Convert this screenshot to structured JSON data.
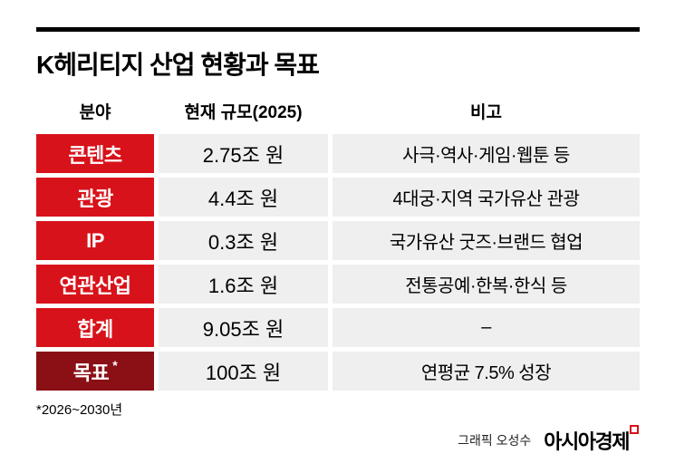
{
  "header": {
    "title": "K헤리티지 산업 현황과 목표"
  },
  "table": {
    "columns": [
      "분야",
      "현재 규모(2025)",
      "비고"
    ],
    "rows": [
      {
        "field": "콘텐츠",
        "scale": "2.75조 원",
        "note": "사극·역사·게임·웹툰 등"
      },
      {
        "field": "관광",
        "scale": "4.4조 원",
        "note": "4대궁·지역 국가유산 관광"
      },
      {
        "field": "IP",
        "scale": "0.3조 원",
        "note": "국가유산 굿즈·브랜드 협업"
      },
      {
        "field": "연관산업",
        "scale": "1.6조 원",
        "note": "전통공예·한복·한식 등"
      },
      {
        "field": "합계",
        "scale": "9.05조 원",
        "note": "–"
      },
      {
        "field": "목표",
        "field_sup": "*",
        "scale": "100조 원",
        "note": "연평균 7.5% 성장"
      }
    ]
  },
  "footnote": "*2026~2030년",
  "credit": "그래픽 오성수",
  "logo": "아시아경제",
  "colors": {
    "red": "#d8121a",
    "dark_red": "#8a1016",
    "cell_bg": "#efefef"
  },
  "chart_data": {
    "type": "table",
    "title": "K헤리티지 산업 현황과 목표",
    "columns": [
      "분야",
      "현재 규모(2025)",
      "비고"
    ],
    "rows": [
      [
        "콘텐츠",
        "2.75조 원",
        "사극·역사·게임·웹툰 등"
      ],
      [
        "관광",
        "4.4조 원",
        "4대궁·지역 국가유산 관광"
      ],
      [
        "IP",
        "0.3조 원",
        "국가유산 굿즈·브랜드 협업"
      ],
      [
        "연관산업",
        "1.6조 원",
        "전통공예·한복·한식 등"
      ],
      [
        "합계",
        "9.05조 원",
        "–"
      ],
      [
        "목표*",
        "100조 원",
        "연평균 7.5% 성장"
      ]
    ],
    "current_scale_trillion_krw": [
      2.75,
      4.4,
      0.3,
      1.6,
      9.05
    ],
    "target_trillion_krw": 100,
    "footnote": "*2026~2030년"
  }
}
